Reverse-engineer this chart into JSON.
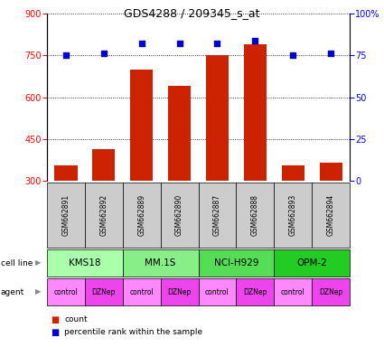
{
  "title": "GDS4288 / 209345_s_at",
  "samples": [
    "GSM662891",
    "GSM662892",
    "GSM662889",
    "GSM662890",
    "GSM662887",
    "GSM662888",
    "GSM662893",
    "GSM662894"
  ],
  "counts": [
    355,
    415,
    700,
    640,
    750,
    790,
    355,
    365
  ],
  "percentile_ranks": [
    75,
    76,
    82,
    82,
    82,
    84,
    75,
    76
  ],
  "cell_lines": [
    {
      "name": "KMS18",
      "start": 0,
      "end": 2,
      "color": "#aaffaa"
    },
    {
      "name": "MM.1S",
      "start": 2,
      "end": 4,
      "color": "#88ee88"
    },
    {
      "name": "NCI-H929",
      "start": 4,
      "end": 6,
      "color": "#55dd55"
    },
    {
      "name": "OPM-2",
      "start": 6,
      "end": 8,
      "color": "#22cc22"
    }
  ],
  "agents": [
    "control",
    "DZNep",
    "control",
    "DZNep",
    "control",
    "DZNep",
    "control",
    "DZNep"
  ],
  "agent_colors": [
    "#ff88ff",
    "#ee44ee",
    "#ff88ff",
    "#ee44ee",
    "#ff88ff",
    "#ee44ee",
    "#ff88ff",
    "#ee44ee"
  ],
  "bar_color": "#cc2200",
  "dot_color": "#0000cc",
  "ylim_left": [
    300,
    900
  ],
  "yticks_left": [
    300,
    450,
    600,
    750,
    900
  ],
  "ylim_right": [
    0,
    100
  ],
  "yticks_right": [
    0,
    25,
    50,
    75,
    100
  ],
  "sample_box_color": "#cccccc",
  "left_label_color": "#000000",
  "arrow_color": "#999999"
}
